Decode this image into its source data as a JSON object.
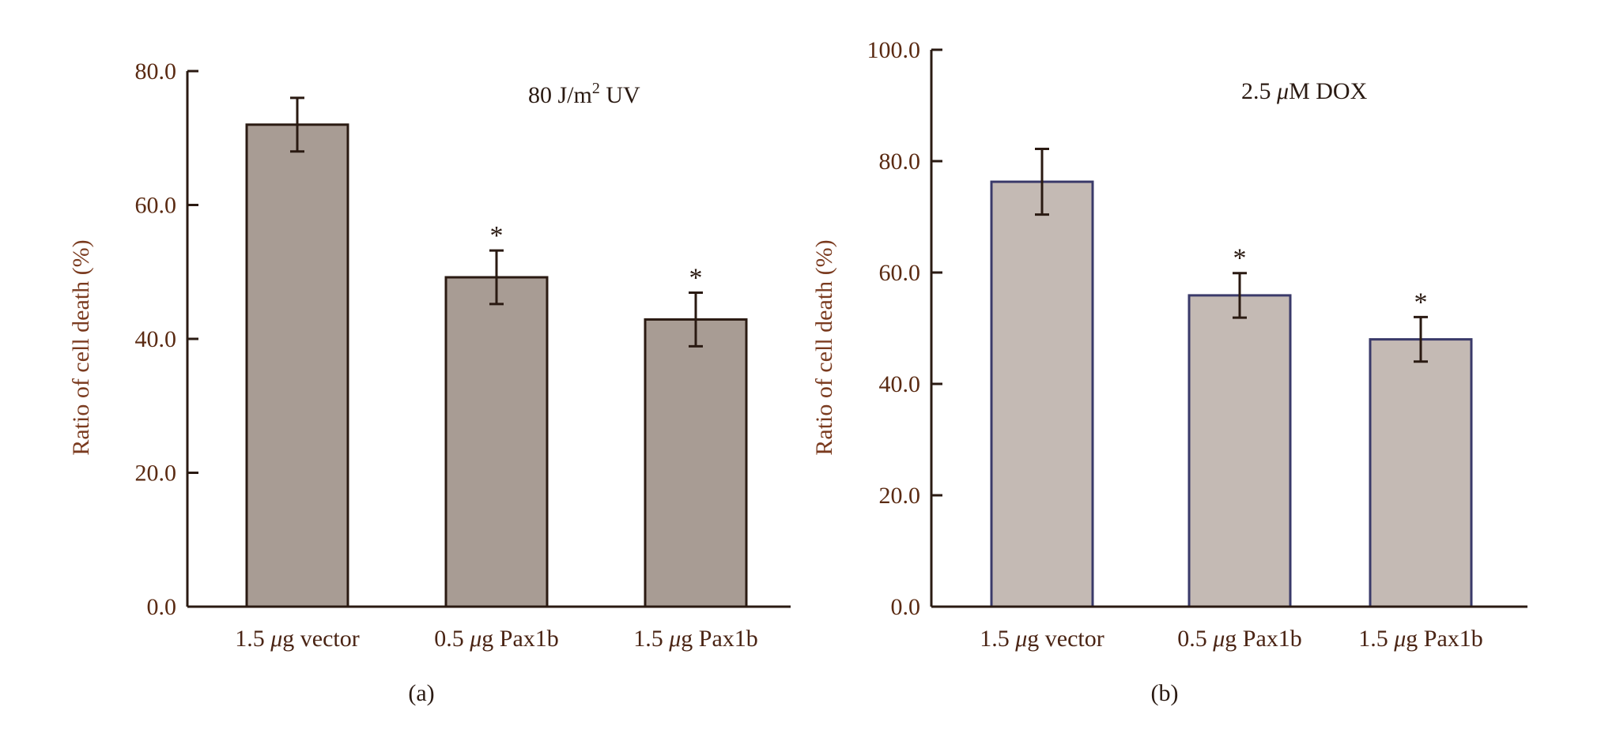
{
  "chart_data": [
    {
      "type": "bar",
      "panel_label": "(a)",
      "annotation": "80 J/m² UV",
      "ylabel": "Ratio of cell death (%)",
      "xlabel": "",
      "categories": [
        "1.5 μg vector",
        "0.5 μg Pax1b",
        "1.5 μg Pax1b"
      ],
      "values": [
        72.0,
        49.2,
        42.9
      ],
      "errors": [
        4.0,
        4.0,
        4.0
      ],
      "significance": [
        "",
        "*",
        "*"
      ],
      "ylim": [
        0,
        80
      ],
      "yticks": [
        "0.0",
        "20.0",
        "40.0",
        "60.0",
        "80.0"
      ],
      "bar_color": "#a89c94",
      "bar_edge_color": "#2a1a12",
      "grid": false
    },
    {
      "type": "bar",
      "panel_label": "(b)",
      "annotation": "2.5 μM DOX",
      "ylabel": "Ratio of cell death (%)",
      "xlabel": "",
      "categories": [
        "1.5 μg vector",
        "0.5 μg Pax1b",
        "1.5 μg Pax1b"
      ],
      "values": [
        76.3,
        55.9,
        48.0
      ],
      "errors": [
        5.9,
        4.0,
        4.0
      ],
      "significance": [
        "",
        "*",
        "*"
      ],
      "ylim": [
        0,
        100
      ],
      "yticks": [
        "0.0",
        "20.0",
        "40.0",
        "60.0",
        "80.0",
        "100.0"
      ],
      "bar_color": "#c4bab4",
      "bar_edge_color": "#3a3a6a",
      "grid": false
    }
  ]
}
